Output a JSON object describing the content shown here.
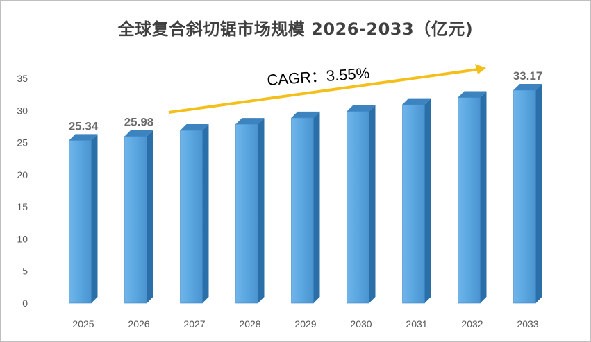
{
  "chart_data": {
    "type": "bar",
    "title": "全球复合斜切锯市场规模 2026-2033（亿元)",
    "categories": [
      "2025",
      "2026",
      "2027",
      "2028",
      "2029",
      "2030",
      "2031",
      "2032",
      "2033"
    ],
    "values": [
      25.34,
      25.98,
      26.9,
      27.86,
      28.85,
      29.87,
      30.93,
      32.03,
      33.17
    ],
    "data_labels": [
      {
        "index": 0,
        "text": "25.34"
      },
      {
        "index": 1,
        "text": "25.98"
      },
      {
        "index": 8,
        "text": "33.17"
      }
    ],
    "annotation": "CAGR：3.55%",
    "ylim": [
      0,
      35
    ],
    "yticks": [
      0,
      5,
      10,
      15,
      20,
      25,
      30,
      35
    ],
    "xlabel": "",
    "ylabel": "",
    "grid": false,
    "legend": "none",
    "colors": {
      "bar_front": "#5aa6e0",
      "bar_side": "#2a6fa8",
      "bar_top": "#3c83bf",
      "arrow": "#f5bf1a"
    }
  }
}
